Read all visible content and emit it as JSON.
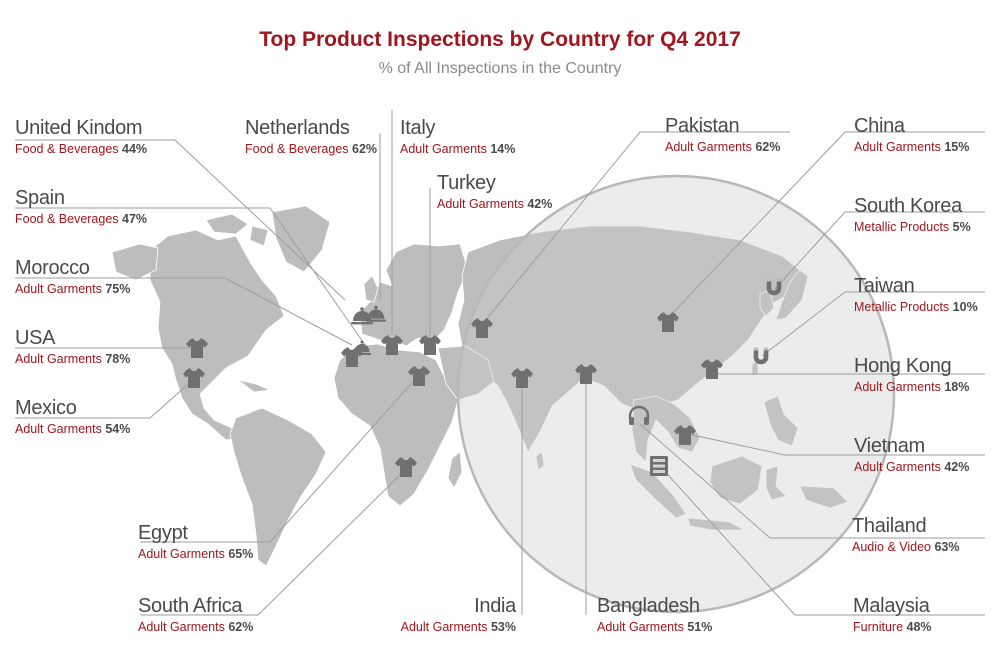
{
  "title": "Top Product Inspections by Country for Q4 2017",
  "subtitle": "% of All Inspections in the Country",
  "colors": {
    "title": "#a1161c",
    "category": "#a1161c",
    "country": "#4a4a4a",
    "land": "#bdbdbd",
    "icon": "#707070",
    "leader_line": "#9e9e9e"
  },
  "countries": [
    {
      "name": "United Kindom",
      "category": "Food & Beverages",
      "percent": "44%",
      "icon": "food-cloche-icon"
    },
    {
      "name": "Spain",
      "category": "Food & Beverages",
      "percent": "47%",
      "icon": "food-cloche-icon"
    },
    {
      "name": "Morocco",
      "category": "Adult Garments",
      "percent": "75%",
      "icon": "tshirt-icon"
    },
    {
      "name": "USA",
      "category": "Adult Garments",
      "percent": "78%",
      "icon": "tshirt-icon"
    },
    {
      "name": "Mexico",
      "category": "Adult Garments",
      "percent": "54%",
      "icon": "tshirt-icon"
    },
    {
      "name": "Netherlands",
      "category": "Food & Beverages",
      "percent": "62%",
      "icon": "food-cloche-icon"
    },
    {
      "name": "Italy",
      "category": "Adult Garments",
      "percent": "14%",
      "icon": "tshirt-icon"
    },
    {
      "name": "Turkey",
      "category": "Adult Garments",
      "percent": "42%",
      "icon": "tshirt-icon"
    },
    {
      "name": "Pakistan",
      "category": "Adult Garments",
      "percent": "62%",
      "icon": "tshirt-icon"
    },
    {
      "name": "China",
      "category": "Adult Garments",
      "percent": "15%",
      "icon": "tshirt-icon"
    },
    {
      "name": "South Korea",
      "category": "Metallic Products",
      "percent": "5%",
      "icon": "magnet-icon"
    },
    {
      "name": "Taiwan",
      "category": "Metallic Products",
      "percent": "10%",
      "icon": "magnet-icon"
    },
    {
      "name": "Hong Kong",
      "category": "Adult Garments",
      "percent": "18%",
      "icon": "tshirt-icon"
    },
    {
      "name": "Vietnam",
      "category": "Adult Garments",
      "percent": "42%",
      "icon": "tshirt-icon"
    },
    {
      "name": "Thailand",
      "category": "Audio & Video",
      "percent": "63%",
      "icon": "headphones-icon"
    },
    {
      "name": "Malaysia",
      "category": "Furniture",
      "percent": "48%",
      "icon": "cabinet-icon"
    },
    {
      "name": "Bangladesh",
      "category": "Adult Garments",
      "percent": "51%",
      "icon": "tshirt-icon"
    },
    {
      "name": "India",
      "category": "Adult Garments",
      "percent": "53%",
      "icon": "tshirt-icon"
    },
    {
      "name": "Egypt",
      "category": "Adult Garments",
      "percent": "65%",
      "icon": "tshirt-icon"
    },
    {
      "name": "South Africa",
      "category": "Adult Garments",
      "percent": "62%",
      "icon": "tshirt-icon"
    }
  ]
}
